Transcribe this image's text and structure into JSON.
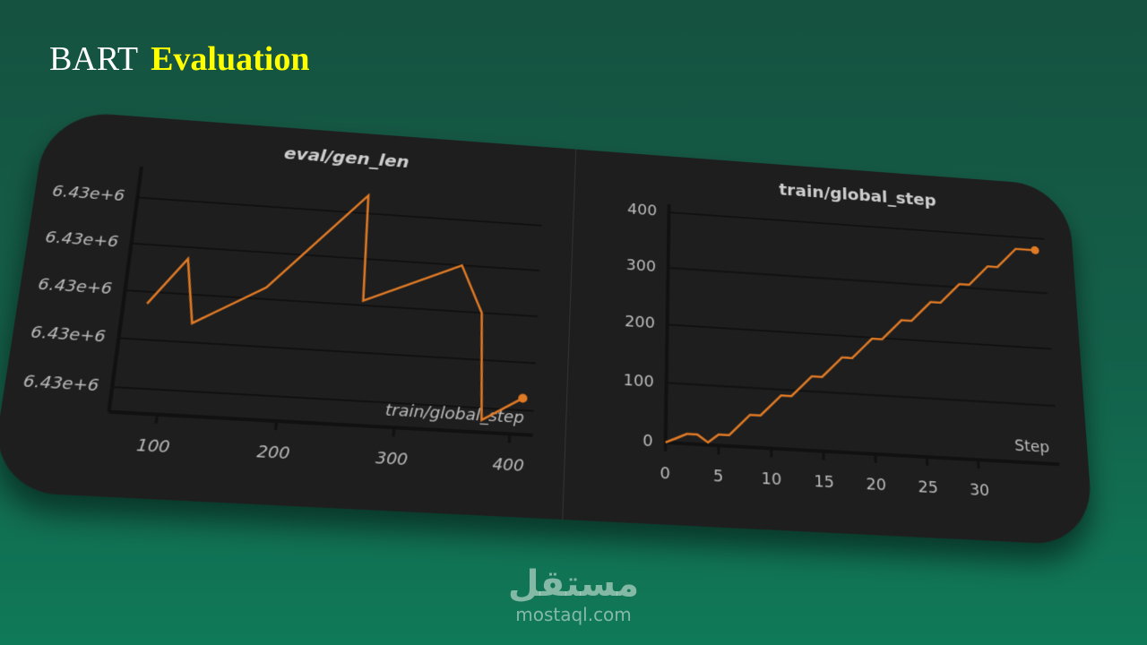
{
  "header": {
    "prefix": "BART",
    "title": "Evaluation"
  },
  "watermark": {
    "logo": "مستقل",
    "site": "mostaql.com"
  },
  "chart_data": [
    {
      "type": "line",
      "title": "eval/gen_len",
      "x_label": "train/global_step",
      "color": "#e07a25",
      "grid": true,
      "x": [
        80,
        110,
        120,
        180,
        262,
        265,
        350,
        370,
        375,
        410
      ],
      "values": [
        6429999.5,
        6430001.5,
        6429998.8,
        6430000.5,
        6430004.8,
        6430000.2,
        6430002,
        6430000,
        6429995.5,
        6429996.5
      ],
      "xlim": [
        60,
        420
      ],
      "xticks": [
        100,
        200,
        300,
        400
      ],
      "ylim": [
        6429995,
        6430005
      ],
      "yticks": [
        {
          "value": 6429996,
          "label": "6.43e+6"
        },
        {
          "value": 6429998,
          "label": "6.43e+6"
        },
        {
          "value": 6430000,
          "label": "6.43e+6"
        },
        {
          "value": 6430002,
          "label": "6.43e+6"
        },
        {
          "value": 6430004,
          "label": "6.43e+6"
        }
      ]
    },
    {
      "type": "line",
      "title": "train/global_step",
      "x_label": "Step",
      "color": "#e07a25",
      "grid": true,
      "x": [
        0,
        1,
        2,
        3,
        4,
        5,
        6,
        7,
        8,
        9,
        10,
        11,
        12,
        13,
        14,
        15,
        16,
        17,
        18,
        19,
        20,
        21,
        22,
        23,
        24,
        25,
        26,
        27,
        28,
        29,
        30,
        31,
        32,
        33,
        34,
        35,
        36,
        37
      ],
      "values": [
        0,
        8,
        16,
        16,
        4,
        18,
        18,
        36,
        54,
        54,
        72,
        90,
        90,
        108,
        126,
        126,
        144,
        162,
        162,
        180,
        198,
        198,
        216,
        234,
        234,
        252,
        270,
        270,
        288,
        306,
        306,
        324,
        342,
        342,
        360,
        378,
        378,
        378
      ],
      "xlim": [
        0,
        38
      ],
      "xticks": [
        0,
        5,
        10,
        15,
        20,
        25,
        30
      ],
      "ylim": [
        0,
        400
      ],
      "yticks": [
        0,
        100,
        200,
        300,
        400
      ]
    }
  ]
}
